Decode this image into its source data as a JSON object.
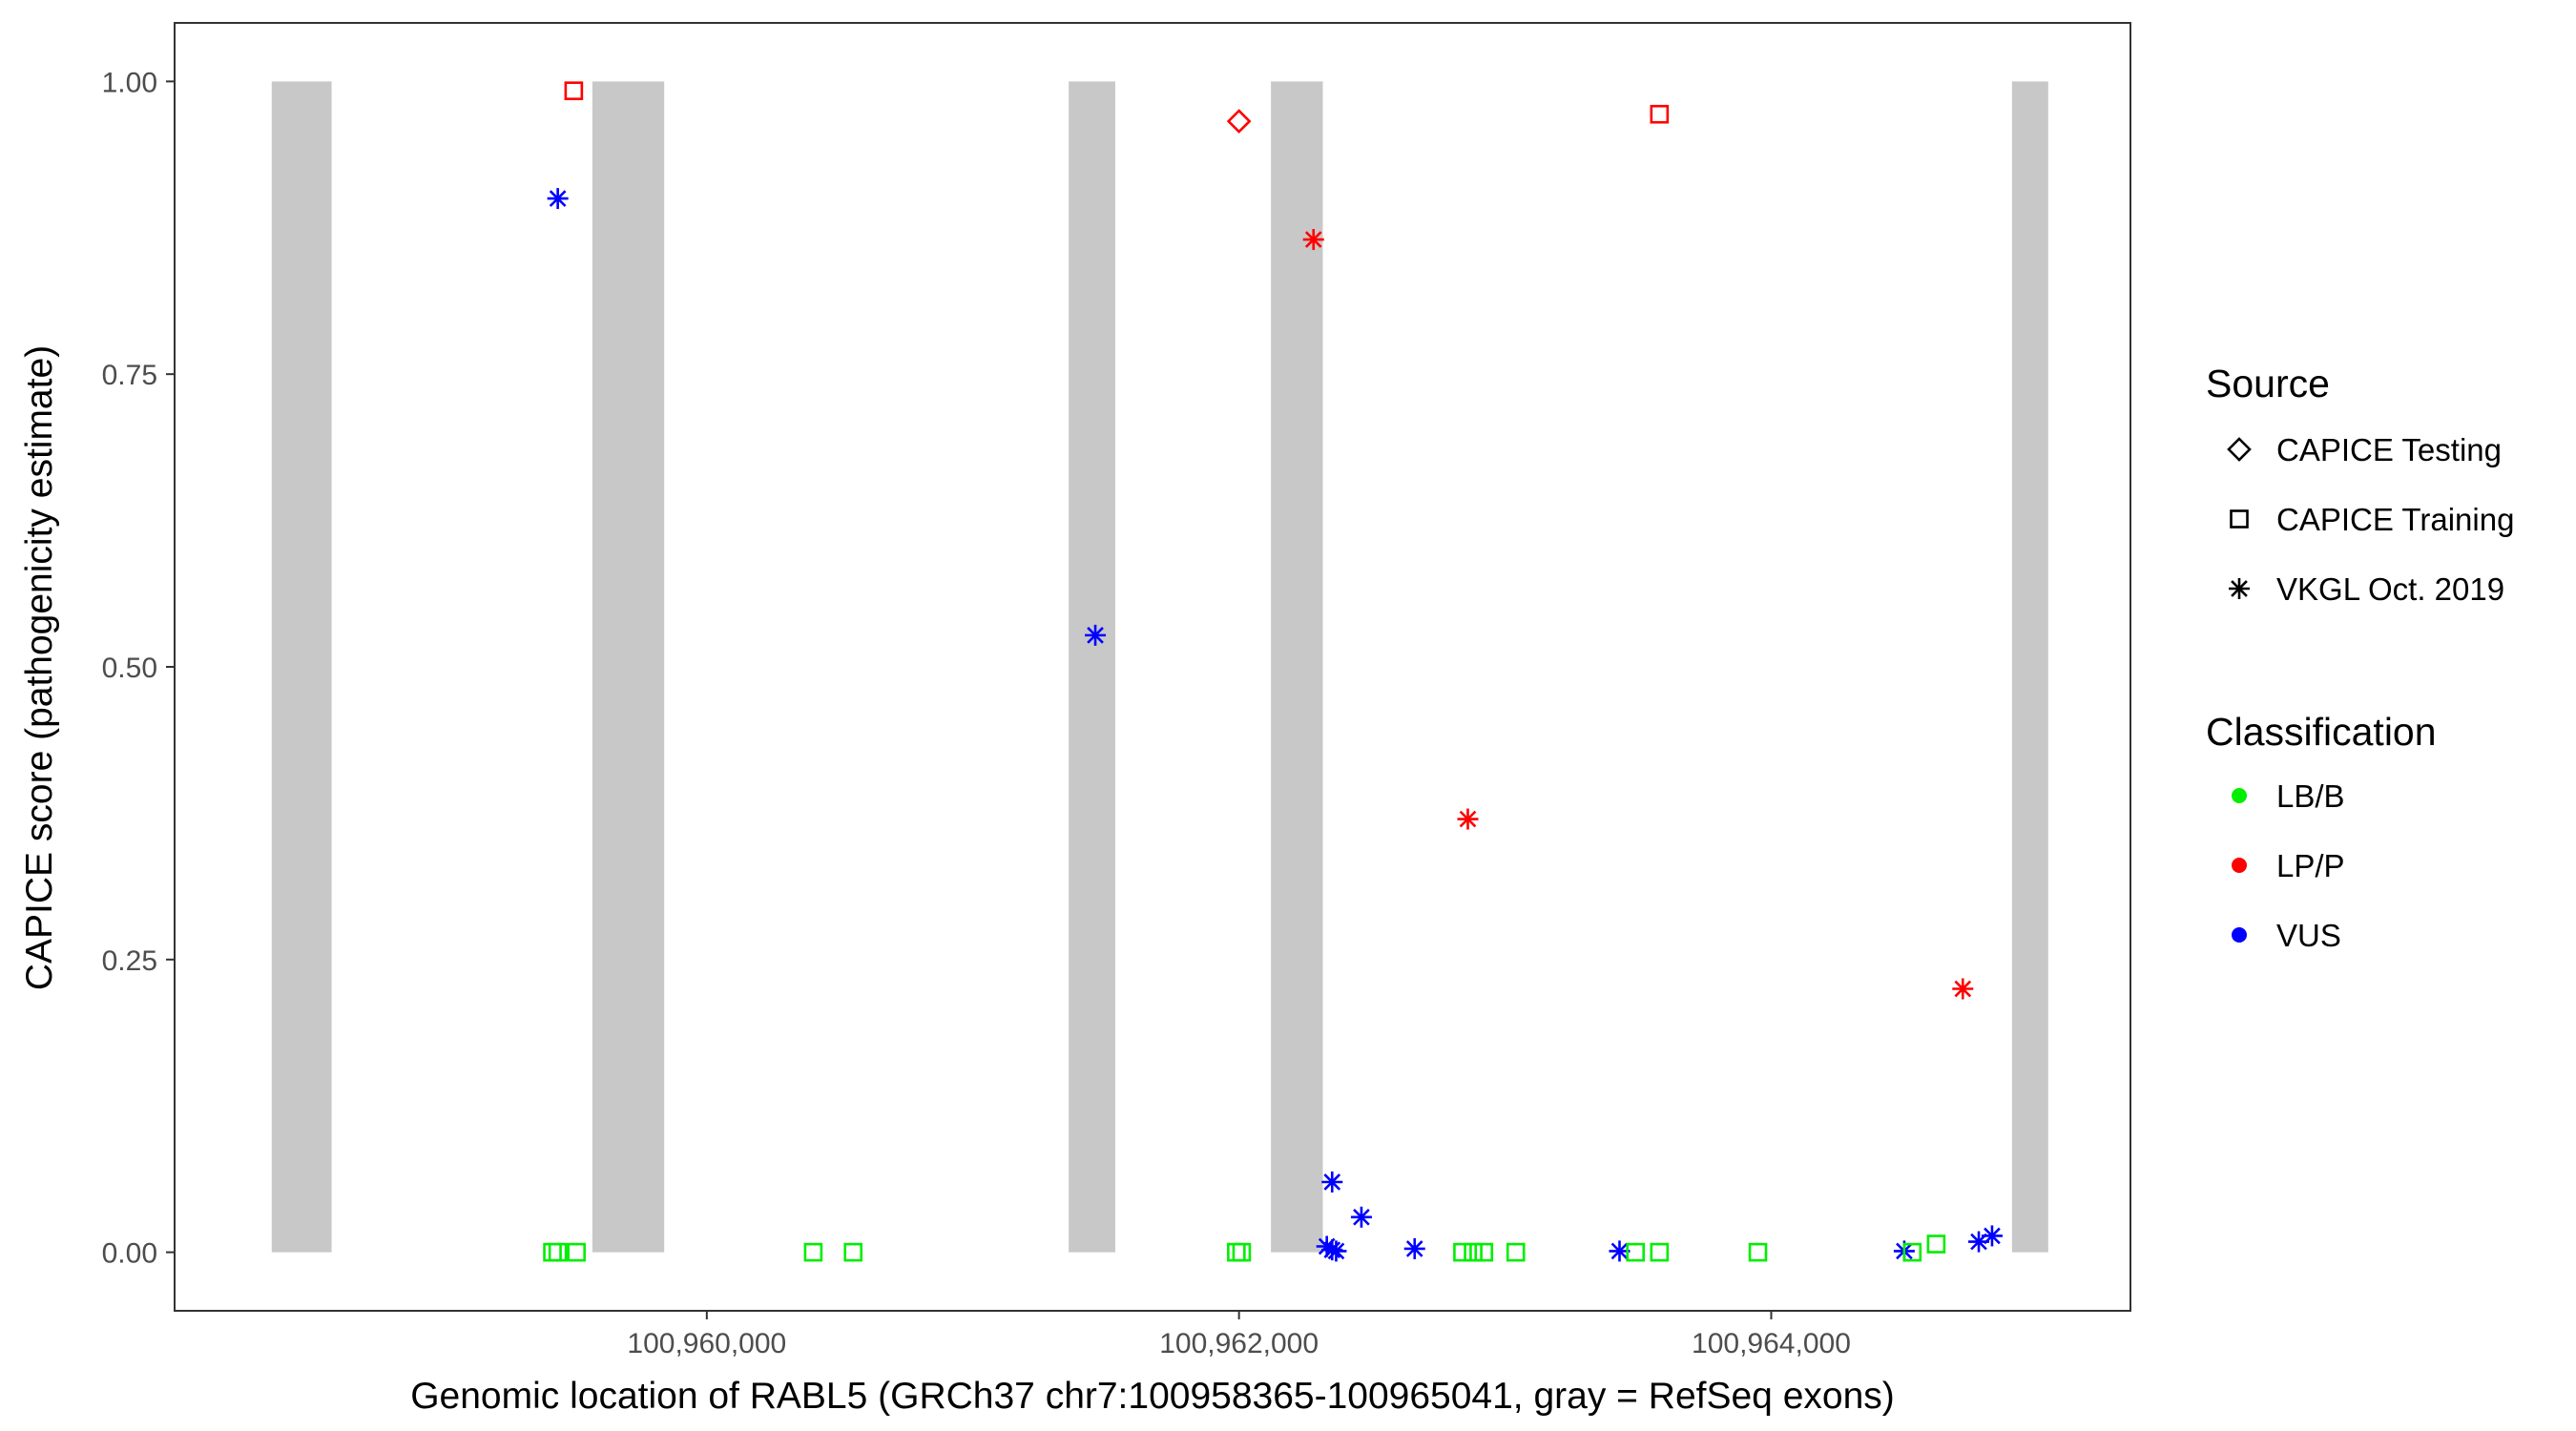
{
  "chart_data": {
    "type": "scatter",
    "title": "",
    "xlabel": "Genomic location of RABL5 (GRCh37 chr7:100958365-100965041, gray = RefSeq exons)",
    "ylabel": "CAPICE score (pathogenicity estimate)",
    "xlim": [
      100958000,
      100965350
    ],
    "ylim": [
      -0.05,
      1.05
    ],
    "x_ticks": [
      100960000,
      100962000,
      100964000
    ],
    "x_tick_labels": [
      "100,960,000",
      "100,962,000",
      "100,964,000"
    ],
    "y_ticks": [
      0,
      0.25,
      0.5,
      0.75,
      1
    ],
    "y_tick_labels": [
      "0.00",
      "0.25",
      "0.50",
      "0.75",
      "1.00"
    ],
    "grid": false,
    "exons": [
      [
        100958365,
        100958590
      ],
      [
        100959570,
        100959840
      ],
      [
        100961360,
        100961535
      ],
      [
        100962120,
        100962315
      ],
      [
        100964905,
        100965041
      ]
    ],
    "legend_position": "right",
    "legend": {
      "source_title": "Source",
      "source_items": [
        {
          "label": "CAPICE Testing",
          "shape": "diamond"
        },
        {
          "label": "CAPICE Training",
          "shape": "square"
        },
        {
          "label": "VKGL Oct. 2019",
          "shape": "star"
        }
      ],
      "class_title": "Classification",
      "class_items": [
        {
          "label": "LB/B",
          "color": "#00ee00"
        },
        {
          "label": "LP/P",
          "color": "#ff0000"
        },
        {
          "label": "VUS",
          "color": "#0000ff"
        }
      ]
    },
    "colors": {
      "LB/B": "#00ee00",
      "LP/P": "#ff0000",
      "VUS": "#0000ff",
      "exon": "#c8c8c8"
    },
    "points": [
      {
        "x": 100959500,
        "y": 0.992,
        "source": "CAPICE Training",
        "class": "LP/P"
      },
      {
        "x": 100959440,
        "y": 0.9,
        "source": "VKGL Oct. 2019",
        "class": "VUS"
      },
      {
        "x": 100962000,
        "y": 0.966,
        "source": "CAPICE Testing",
        "class": "LP/P"
      },
      {
        "x": 100963580,
        "y": 0.972,
        "source": "CAPICE Training",
        "class": "LP/P"
      },
      {
        "x": 100962280,
        "y": 0.865,
        "source": "VKGL Oct. 2019",
        "class": "LP/P"
      },
      {
        "x": 100961460,
        "y": 0.527,
        "source": "VKGL Oct. 2019",
        "class": "VUS"
      },
      {
        "x": 100962860,
        "y": 0.37,
        "source": "VKGL Oct. 2019",
        "class": "LP/P"
      },
      {
        "x": 100964720,
        "y": 0.225,
        "source": "VKGL Oct. 2019",
        "class": "LP/P"
      },
      {
        "x": 100962350,
        "y": 0.06,
        "source": "VKGL Oct. 2019",
        "class": "VUS"
      },
      {
        "x": 100962460,
        "y": 0.03,
        "source": "VKGL Oct. 2019",
        "class": "VUS"
      },
      {
        "x": 100962330,
        "y": 0.005,
        "source": "VKGL Oct. 2019",
        "class": "VUS"
      },
      {
        "x": 100962350,
        "y": 0.002,
        "source": "VKGL Oct. 2019",
        "class": "VUS"
      },
      {
        "x": 100962365,
        "y": 0.001,
        "source": "VKGL Oct. 2019",
        "class": "VUS"
      },
      {
        "x": 100962660,
        "y": 0.003,
        "source": "VKGL Oct. 2019",
        "class": "VUS"
      },
      {
        "x": 100963430,
        "y": 0.001,
        "source": "VKGL Oct. 2019",
        "class": "VUS"
      },
      {
        "x": 100964500,
        "y": 0.001,
        "source": "VKGL Oct. 2019",
        "class": "VUS"
      },
      {
        "x": 100964780,
        "y": 0.009,
        "source": "VKGL Oct. 2019",
        "class": "VUS"
      },
      {
        "x": 100964830,
        "y": 0.014,
        "source": "VKGL Oct. 2019",
        "class": "VUS"
      },
      {
        "x": 100959420,
        "y": 0.0,
        "source": "CAPICE Training",
        "class": "LB/B"
      },
      {
        "x": 100959440,
        "y": 0.0,
        "source": "CAPICE Training",
        "class": "LB/B"
      },
      {
        "x": 100959510,
        "y": 0.0,
        "source": "CAPICE Training",
        "class": "LB/B"
      },
      {
        "x": 100960400,
        "y": 0.0,
        "source": "CAPICE Training",
        "class": "LB/B"
      },
      {
        "x": 100960550,
        "y": 0.0,
        "source": "CAPICE Training",
        "class": "LB/B"
      },
      {
        "x": 100961990,
        "y": 0.0,
        "source": "CAPICE Training",
        "class": "LB/B"
      },
      {
        "x": 100962010,
        "y": 0.0,
        "source": "CAPICE Training",
        "class": "LB/B"
      },
      {
        "x": 100962840,
        "y": 0.0,
        "source": "CAPICE Training",
        "class": "LB/B"
      },
      {
        "x": 100962880,
        "y": 0.0,
        "source": "CAPICE Training",
        "class": "LB/B"
      },
      {
        "x": 100962920,
        "y": 0.0,
        "source": "CAPICE Training",
        "class": "LB/B"
      },
      {
        "x": 100963040,
        "y": 0.0,
        "source": "CAPICE Training",
        "class": "LB/B"
      },
      {
        "x": 100963490,
        "y": 0.0,
        "source": "CAPICE Training",
        "class": "LB/B"
      },
      {
        "x": 100963580,
        "y": 0.0,
        "source": "CAPICE Training",
        "class": "LB/B"
      },
      {
        "x": 100963950,
        "y": 0.0,
        "source": "CAPICE Training",
        "class": "LB/B"
      },
      {
        "x": 100964530,
        "y": 0.0,
        "source": "CAPICE Training",
        "class": "LB/B"
      },
      {
        "x": 100964620,
        "y": 0.007,
        "source": "CAPICE Training",
        "class": "LB/B"
      }
    ]
  }
}
